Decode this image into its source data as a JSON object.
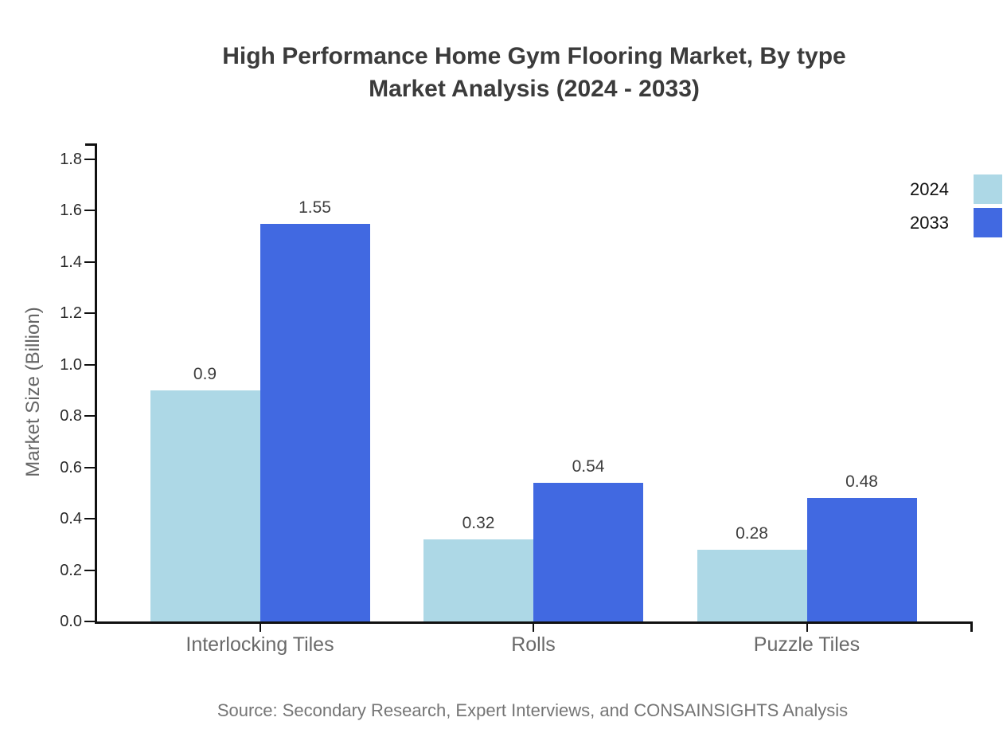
{
  "title": {
    "line1": "High Performance Home Gym Flooring Market, By type",
    "line2": "Market Analysis (2024 - 2033)"
  },
  "source": "Source: Secondary Research, Expert Interviews, and CONSAINSIGHTS Analysis",
  "chart_data": {
    "type": "bar",
    "title": "High Performance Home Gym Flooring Market, By type Market Analysis (2024 - 2033)",
    "categories": [
      "Interlocking Tiles",
      "Rolls",
      "Puzzle Tiles"
    ],
    "series": [
      {
        "name": "2024",
        "color": "#add8e6",
        "values": [
          0.9,
          0.32,
          0.28
        ],
        "value_labels": [
          "0.9",
          "0.32",
          "0.28"
        ]
      },
      {
        "name": "2033",
        "color": "#4169e1",
        "values": [
          1.55,
          0.54,
          0.48
        ],
        "value_labels": [
          "1.55",
          "0.54",
          "0.48"
        ]
      }
    ],
    "xlabel": "",
    "ylabel": "Market Size (Billion)",
    "ylim": [
      0,
      1.8
    ],
    "ytick_labels": [
      "0.0",
      "0.2",
      "0.4",
      "0.6",
      "0.8",
      "1.0",
      "1.2",
      "1.4",
      "1.6",
      "1.8"
    ],
    "grid": false,
    "legend_position": "top-right",
    "colors": {
      "axis": "#111111",
      "title_text": "#3b3b3b",
      "category_text": "#696969",
      "tick_text": "#2b2b2b",
      "source_text": "#757575"
    }
  }
}
